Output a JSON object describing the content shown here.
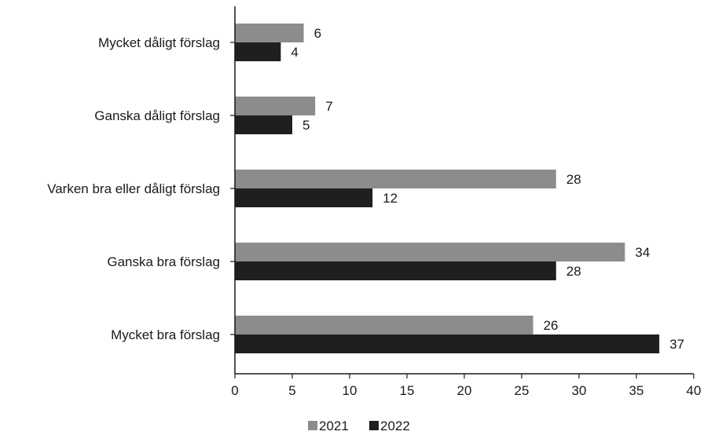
{
  "chart_data": {
    "type": "bar",
    "orientation": "horizontal",
    "categories": [
      "Mycket dåligt förslag",
      "Ganska dåligt förslag",
      "Varken bra eller dåligt förslag",
      "Ganska bra förslag",
      "Mycket bra förslag"
    ],
    "series": [
      {
        "name": "2021",
        "values": [
          6,
          7,
          28,
          34,
          26
        ],
        "color": "#8c8c8c"
      },
      {
        "name": "2022",
        "values": [
          4,
          5,
          12,
          28,
          37
        ],
        "color": "#1f1f1f"
      }
    ],
    "x_ticks": [
      "0",
      "5",
      "10",
      "15",
      "20",
      "25",
      "30",
      "35",
      "40"
    ],
    "xlim": [
      0,
      40
    ],
    "grid": false,
    "legend_position": "bottom-center",
    "title": "",
    "xlabel": "",
    "ylabel": ""
  }
}
